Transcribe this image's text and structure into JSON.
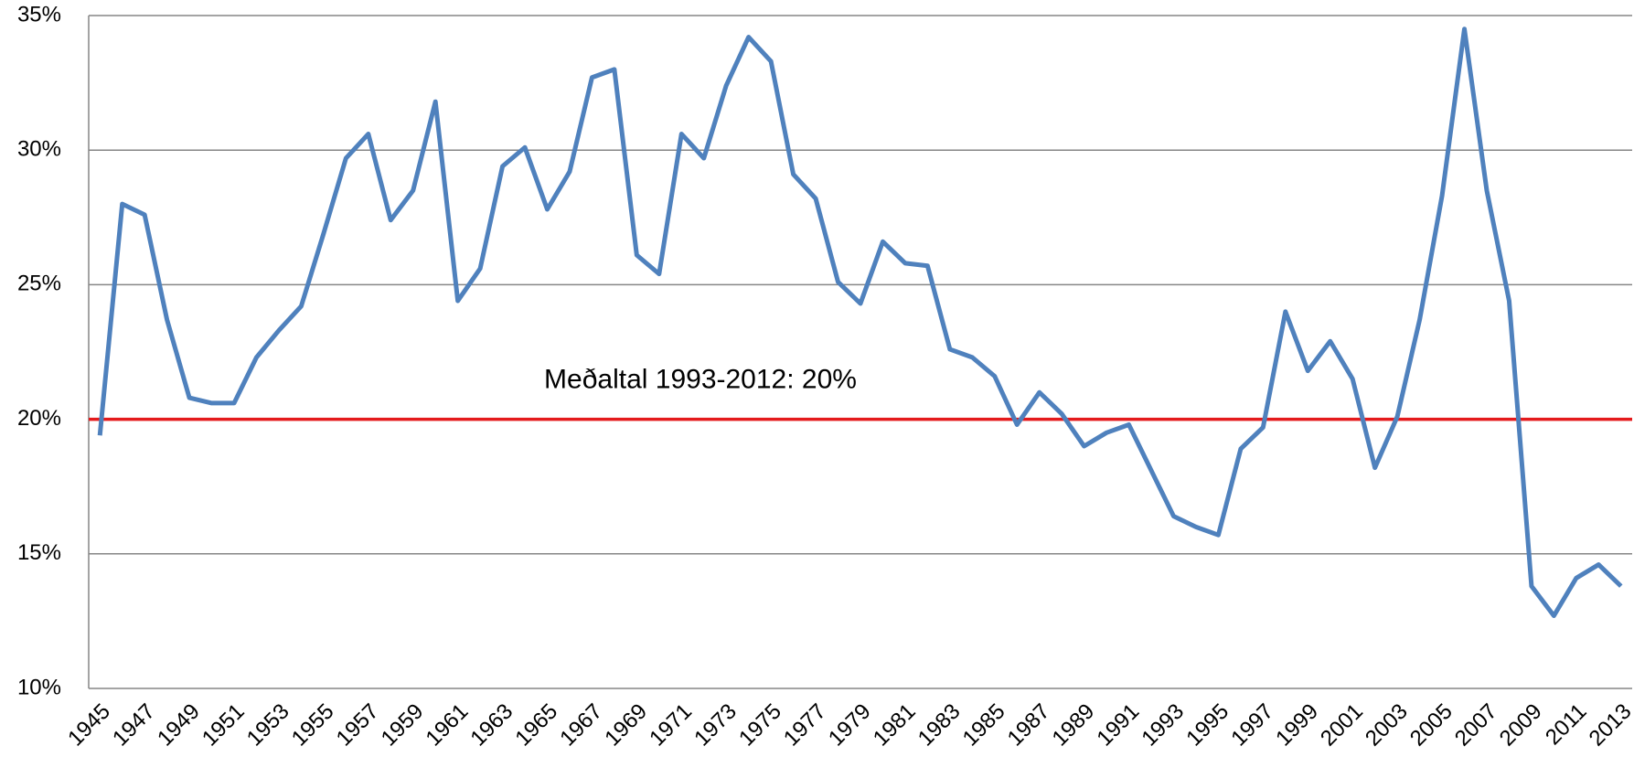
{
  "chart_data": {
    "type": "line",
    "x": [
      1945,
      1946,
      1947,
      1948,
      1949,
      1950,
      1951,
      1952,
      1953,
      1954,
      1955,
      1956,
      1957,
      1958,
      1959,
      1960,
      1961,
      1962,
      1963,
      1964,
      1965,
      1966,
      1967,
      1968,
      1969,
      1970,
      1971,
      1972,
      1973,
      1974,
      1975,
      1976,
      1977,
      1978,
      1979,
      1980,
      1981,
      1982,
      1983,
      1984,
      1985,
      1986,
      1987,
      1988,
      1989,
      1990,
      1991,
      1992,
      1993,
      1994,
      1995,
      1996,
      1997,
      1998,
      1999,
      2000,
      2001,
      2002,
      2003,
      2004,
      2005,
      2006,
      2007,
      2008,
      2009,
      2010,
      2011,
      2012,
      2013
    ],
    "series": [
      {
        "color": "#4f81bd",
        "values": [
          19.4,
          28.0,
          27.6,
          23.7,
          20.8,
          20.6,
          20.6,
          22.3,
          23.3,
          24.2,
          26.9,
          29.7,
          30.6,
          27.4,
          28.5,
          31.8,
          24.4,
          25.6,
          29.4,
          30.1,
          27.8,
          29.2,
          32.7,
          33.0,
          26.1,
          25.4,
          30.6,
          29.7,
          32.4,
          34.2,
          33.3,
          29.1,
          28.2,
          25.1,
          24.3,
          26.6,
          25.8,
          25.7,
          22.6,
          22.3,
          21.6,
          19.8,
          21.0,
          20.2,
          19.0,
          19.5,
          19.8,
          18.1,
          16.4,
          16.0,
          15.7,
          18.9,
          19.7,
          24.0,
          21.8,
          22.9,
          21.5,
          18.2,
          20.1,
          23.7,
          28.3,
          34.5,
          28.5,
          24.4,
          13.8,
          12.7,
          14.1,
          14.6,
          13.8
        ]
      }
    ],
    "reference_line": {
      "value": 20,
      "label": "Meðaltal 1993-2012: 20%",
      "color": "#e41a1c"
    },
    "xlim": [
      1944.5,
      2013.5
    ],
    "xticks": [
      1945,
      1947,
      1949,
      1951,
      1953,
      1955,
      1957,
      1959,
      1961,
      1963,
      1965,
      1967,
      1969,
      1971,
      1973,
      1975,
      1977,
      1979,
      1981,
      1983,
      1985,
      1987,
      1989,
      1991,
      1993,
      1995,
      1997,
      1999,
      2001,
      2003,
      2005,
      2007,
      2009,
      2011,
      2013
    ],
    "ylim": [
      10,
      35
    ],
    "yticks": [
      {
        "value": 10,
        "label": "10%"
      },
      {
        "value": 15,
        "label": "15%"
      },
      {
        "value": 20,
        "label": "20%"
      },
      {
        "value": 25,
        "label": "25%"
      },
      {
        "value": 30,
        "label": "30%"
      },
      {
        "value": 35,
        "label": "35%"
      }
    ],
    "grid": true
  }
}
